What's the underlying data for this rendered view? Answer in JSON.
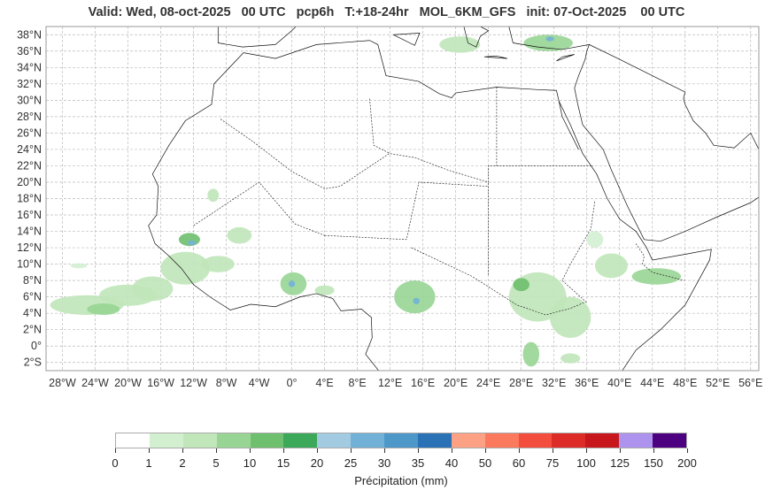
{
  "title": "Valid: Wed, 08-oct-2025   00 UTC   pcp6h   T:+18-24hr   MOL_6KM_GFS   init: 07-Oct-2025    00 UTC",
  "map": {
    "lon_range": [
      -30,
      57
    ],
    "lat_range": [
      -3,
      39
    ],
    "lon_ticks": [
      -28,
      -24,
      -20,
      -16,
      -12,
      -8,
      -4,
      0,
      4,
      8,
      12,
      16,
      20,
      24,
      28,
      32,
      36,
      40,
      44,
      48,
      52,
      56
    ],
    "lon_labels": [
      "28°W",
      "24°W",
      "20°W",
      "16°W",
      "12°W",
      "8°W",
      "4°W",
      "0°",
      "4°E",
      "8°E",
      "12°E",
      "16°E",
      "20°E",
      "24°E",
      "28°E",
      "32°E",
      "36°E",
      "40°E",
      "44°E",
      "48°E",
      "52°E",
      "56°E"
    ],
    "lat_ticks": [
      38,
      36,
      34,
      32,
      30,
      28,
      26,
      24,
      22,
      20,
      18,
      16,
      14,
      12,
      10,
      8,
      6,
      4,
      2,
      0,
      -2
    ],
    "lat_labels": [
      "38°N",
      "36°N",
      "34°N",
      "32°N",
      "30°N",
      "28°N",
      "26°N",
      "24°N",
      "22°N",
      "20°N",
      "18°N",
      "16°N",
      "14°N",
      "12°N",
      "10°N",
      "8°N",
      "6°N",
      "4°N",
      "2°N",
      "0°",
      "2°S"
    ]
  },
  "precip_areas": [
    {
      "lon": -25,
      "lat": 5,
      "rlon": 4.5,
      "rlat": 1.2,
      "mm": 2
    },
    {
      "lon": -20,
      "lat": 6.2,
      "rlon": 3.5,
      "rlat": 1.3,
      "mm": 2
    },
    {
      "lon": -23,
      "lat": 4.5,
      "rlon": 2,
      "rlat": 0.7,
      "mm": 5
    },
    {
      "lon": -17,
      "lat": 7,
      "rlon": 2.5,
      "rlat": 1.5,
      "mm": 2
    },
    {
      "lon": -26,
      "lat": 9.8,
      "rlon": 1,
      "rlat": 0.3,
      "mm": 1
    },
    {
      "lon": -13,
      "lat": 9.5,
      "rlon": 3,
      "rlat": 2,
      "mm": 2
    },
    {
      "lon": -12.5,
      "lat": 13,
      "rlon": 1.3,
      "rlat": 0.8,
      "mm": 10
    },
    {
      "lon": -12.2,
      "lat": 12.6,
      "rlon": 0.5,
      "rlat": 0.3,
      "mm": 25
    },
    {
      "lon": -6.4,
      "lat": 13.5,
      "rlon": 1.5,
      "rlat": 1,
      "mm": 2
    },
    {
      "lon": -9.6,
      "lat": 18.4,
      "rlon": 0.7,
      "rlat": 0.8,
      "mm": 2
    },
    {
      "lon": -9,
      "lat": 10,
      "rlon": 2,
      "rlat": 1,
      "mm": 2
    },
    {
      "lon": 0.2,
      "lat": 7.6,
      "rlon": 1.6,
      "rlat": 1.4,
      "mm": 5
    },
    {
      "lon": 0,
      "lat": 7.6,
      "rlon": 0.4,
      "rlat": 0.4,
      "mm": 25
    },
    {
      "lon": 4,
      "lat": 6.8,
      "rlon": 1.2,
      "rlat": 0.6,
      "mm": 2
    },
    {
      "lon": 15,
      "lat": 6,
      "rlon": 2.5,
      "rlat": 2,
      "mm": 5
    },
    {
      "lon": 15.2,
      "lat": 5.5,
      "rlon": 0.4,
      "rlat": 0.4,
      "mm": 25
    },
    {
      "lon": 30,
      "lat": 6,
      "rlon": 3.5,
      "rlat": 3,
      "mm": 2
    },
    {
      "lon": 28,
      "lat": 7.5,
      "rlon": 1,
      "rlat": 0.8,
      "mm": 10
    },
    {
      "lon": 34,
      "lat": 3.5,
      "rlon": 2.5,
      "rlat": 2.5,
      "mm": 2
    },
    {
      "lon": 39,
      "lat": 9.8,
      "rlon": 2,
      "rlat": 1.5,
      "mm": 2
    },
    {
      "lon": 37,
      "lat": 13,
      "rlon": 1,
      "rlat": 1,
      "mm": 1
    },
    {
      "lon": 44.5,
      "lat": 8.5,
      "rlon": 3,
      "rlat": 1,
      "mm": 5
    },
    {
      "lon": 29.2,
      "lat": -1,
      "rlon": 1,
      "rlat": 1.5,
      "mm": 5
    },
    {
      "lon": 34,
      "lat": -1.5,
      "rlon": 1.2,
      "rlat": 0.6,
      "mm": 2
    },
    {
      "lon": 20.5,
      "lat": 36.8,
      "rlon": 2.5,
      "rlat": 1,
      "mm": 2
    },
    {
      "lon": 31.3,
      "lat": 37,
      "rlon": 3,
      "rlat": 1,
      "mm": 5
    },
    {
      "lon": 31.5,
      "lat": 37.5,
      "rlon": 0.5,
      "rlat": 0.3,
      "mm": 25
    }
  ],
  "colorbar": {
    "bounds": [
      "0",
      "1",
      "2",
      "5",
      "10",
      "15",
      "20",
      "25",
      "30",
      "35",
      "40",
      "50",
      "60",
      "75",
      "100",
      "125",
      "150",
      "200"
    ],
    "colors": [
      "#ffffff",
      "#d2f0d0",
      "#c0e6b9",
      "#98d594",
      "#6ebf6e",
      "#3ca85a",
      "#a2cbe2",
      "#72b1d7",
      "#4d98c9",
      "#2a72b5",
      "#fca184",
      "#fb7a5d",
      "#f24d3d",
      "#dd2b27",
      "#c8171c",
      "#ad93ee",
      "#4d007f"
    ],
    "label": "Précipitation (mm)"
  }
}
